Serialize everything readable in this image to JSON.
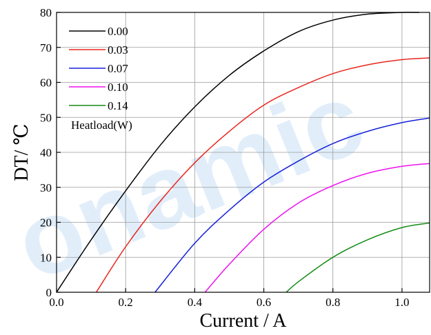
{
  "watermark": "onamic",
  "chart_data": {
    "type": "line",
    "xlabel": "Current / A",
    "ylabel": "DT/ ℃",
    "xlim": [
      0,
      1.08
    ],
    "ylim": [
      0,
      80
    ],
    "x_ticks": [
      0.0,
      0.2,
      0.4,
      0.6,
      0.8,
      1.0
    ],
    "x_tick_labels": [
      "0.0",
      "0.2",
      "0.4",
      "0.6",
      "0.8",
      "1.0"
    ],
    "y_ticks": [
      0,
      10,
      20,
      30,
      40,
      50,
      60,
      70,
      80
    ],
    "y_tick_labels": [
      "0",
      "10",
      "20",
      "30",
      "40",
      "50",
      "60",
      "70",
      "80"
    ],
    "grid": true,
    "legend_title": "Heatload(W)",
    "legend_position": "top-left",
    "series": [
      {
        "name": "0.00",
        "color": "#000000",
        "x": [
          0.0,
          0.1,
          0.2,
          0.3,
          0.4,
          0.5,
          0.6,
          0.7,
          0.8,
          0.9,
          1.0,
          1.05
        ],
        "y": [
          0,
          15,
          29,
          42,
          53,
          62,
          69,
          74.5,
          77.8,
          79.5,
          80,
          80
        ]
      },
      {
        "name": "0.03",
        "color": "#e8251e",
        "x": [
          0.115,
          0.2,
          0.3,
          0.4,
          0.5,
          0.6,
          0.7,
          0.8,
          0.9,
          1.0,
          1.08
        ],
        "y": [
          0,
          13,
          26,
          37,
          46,
          53.5,
          58.5,
          62.5,
          65,
          66.5,
          67
        ]
      },
      {
        "name": "0.07",
        "color": "#1520d8",
        "x": [
          0.285,
          0.4,
          0.5,
          0.6,
          0.7,
          0.8,
          0.9,
          1.0,
          1.08
        ],
        "y": [
          0,
          14,
          23.5,
          31.5,
          37.5,
          42.5,
          46,
          48.5,
          49.8
        ]
      },
      {
        "name": "0.10",
        "color": "#ee10ee",
        "x": [
          0.43,
          0.5,
          0.6,
          0.7,
          0.8,
          0.9,
          1.0,
          1.08
        ],
        "y": [
          0,
          8,
          18,
          25.5,
          30.5,
          34,
          36,
          36.8
        ]
      },
      {
        "name": "0.14",
        "color": "#138a13",
        "x": [
          0.665,
          0.7,
          0.8,
          0.9,
          1.0,
          1.08
        ],
        "y": [
          0,
          3,
          10,
          15,
          18.5,
          19.8
        ]
      }
    ]
  }
}
